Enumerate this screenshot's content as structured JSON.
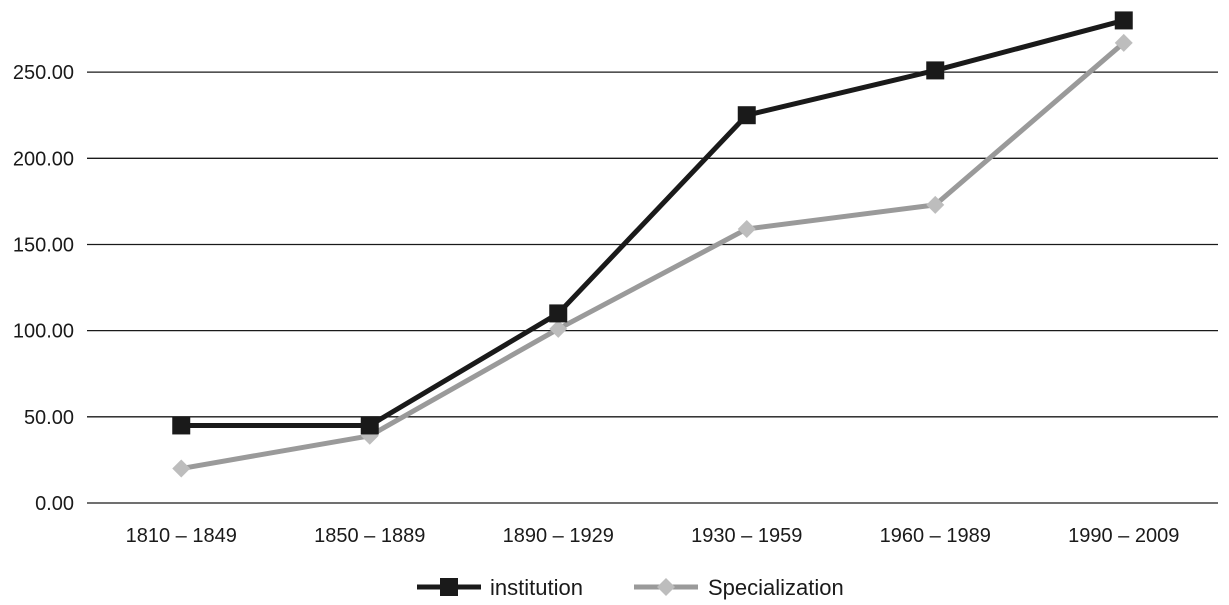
{
  "chart_data": {
    "type": "line",
    "categories": [
      "1810 – 1849",
      "1850 – 1889",
      "1890 – 1929",
      "1930 – 1959",
      "1960 – 1989",
      "1990 – 2009"
    ],
    "series": [
      {
        "name": "institution",
        "values": [
          45,
          45,
          110,
          225,
          251,
          280
        ],
        "color": "#1a1a1a",
        "marker": "square"
      },
      {
        "name": "Specialization",
        "values": [
          20,
          39,
          101,
          159,
          173,
          267
        ],
        "color": "#9a9a9a",
        "marker_color": "#bdbdbd",
        "marker": "diamond"
      }
    ],
    "y_ticks": [
      "0.00",
      "50.00",
      "100.00",
      "150.00",
      "200.00",
      "250.00"
    ],
    "ylim": [
      0,
      290
    ],
    "grid": true,
    "legend": "bottom"
  }
}
